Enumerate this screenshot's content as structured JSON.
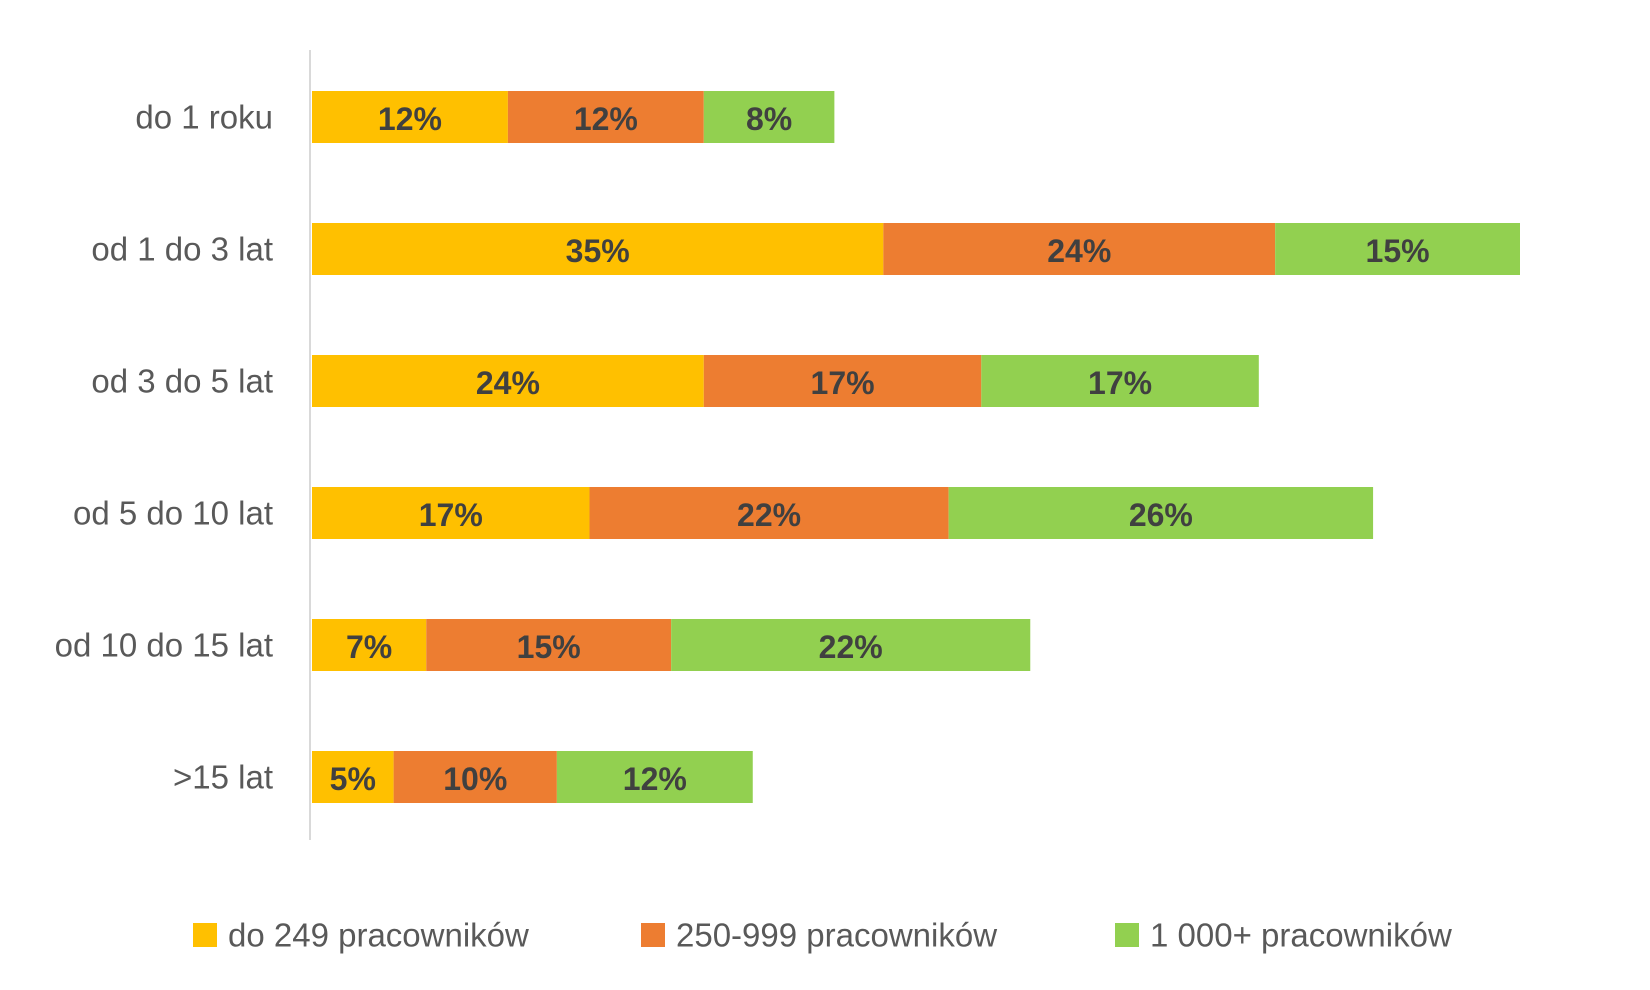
{
  "chart_data": {
    "type": "bar",
    "orientation": "horizontal",
    "stacked": true,
    "categories": [
      "do 1 roku",
      "od 1 do 3 lat",
      "od 3 do 5 lat",
      "od 5 do 10 lat",
      "od 10 do 15 lat",
      ">15 lat"
    ],
    "series": [
      {
        "name": "do 249 pracowników",
        "color": "#FFC000",
        "values": [
          12,
          35,
          24,
          17,
          7,
          5
        ],
        "labels": [
          "12%",
          "35%",
          "24%",
          "17%",
          "7%",
          "5%"
        ]
      },
      {
        "name": "250-999 pracowników",
        "color": "#ED7D31",
        "values": [
          12,
          24,
          17,
          22,
          15,
          10
        ],
        "labels": [
          "12%",
          "24%",
          "17%",
          "22%",
          "15%",
          "10%"
        ]
      },
      {
        "name": "1 000+ pracowników",
        "color": "#92D050",
        "values": [
          8,
          15,
          17,
          26,
          22,
          12
        ],
        "labels": [
          "8%",
          "15%",
          "17%",
          "26%",
          "22%",
          "12%"
        ]
      }
    ],
    "xlim": [
      0,
      74
    ],
    "grid": false,
    "legend_position": "bottom"
  }
}
